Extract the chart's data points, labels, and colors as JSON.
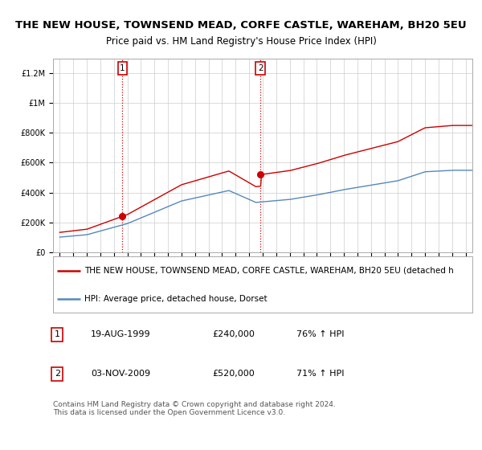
{
  "title": "THE NEW HOUSE, TOWNSEND MEAD, CORFE CASTLE, WAREHAM, BH20 5EU",
  "subtitle": "Price paid vs. HM Land Registry's House Price Index (HPI)",
  "xlim": [
    1994.5,
    2025.5
  ],
  "ylim": [
    0,
    1300000
  ],
  "yticks": [
    0,
    200000,
    400000,
    600000,
    800000,
    1000000,
    1200000
  ],
  "ytick_labels": [
    "£0",
    "£200K",
    "£400K",
    "£600K",
    "£800K",
    "£1M",
    "£1.2M"
  ],
  "grid_color": "#cccccc",
  "background_color": "#ffffff",
  "sale1_x": 1999.633,
  "sale1_y": 240000,
  "sale2_x": 2009.838,
  "sale2_y": 520000,
  "red_line_color": "#cc0000",
  "blue_line_color": "#5588bb",
  "legend_text_red": "THE NEW HOUSE, TOWNSEND MEAD, CORFE CASTLE, WAREHAM, BH20 5EU (detached h",
  "legend_text_blue": "HPI: Average price, detached house, Dorset",
  "footnote": "Contains HM Land Registry data © Crown copyright and database right 2024.\nThis data is licensed under the Open Government Licence v3.0.",
  "annotation_box_color": "#cc0000",
  "title_fontsize": 9.5,
  "subtitle_fontsize": 8.5,
  "tick_fontsize": 7,
  "legend_fontsize": 7.5,
  "table_fontsize": 8,
  "footnote_fontsize": 6.5
}
